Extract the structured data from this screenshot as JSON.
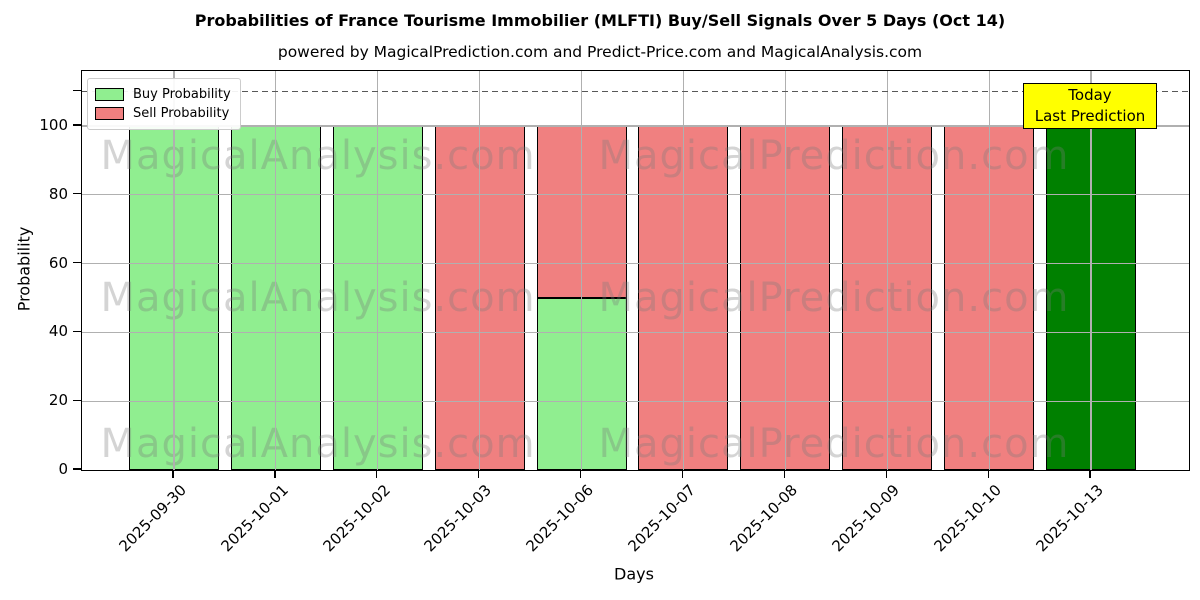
{
  "title": "Probabilities of France Tourisme Immobilier (MLFTI) Buy/Sell Signals Over 5 Days (Oct 14)",
  "subtitle": "powered by MagicalPrediction.com and Predict-Price.com and MagicalAnalysis.com",
  "chart_data": {
    "type": "bar",
    "stacked": true,
    "xlabel": "Days",
    "ylabel": "Probability",
    "ylim": [
      0,
      116
    ],
    "yticks": [
      0,
      20,
      40,
      60,
      80,
      100
    ],
    "unlabeled_ytick": 110,
    "grid": true,
    "grid_color": "#b0b0b0",
    "bar_edge_color": "#000000",
    "categories": [
      "2025-09-30",
      "2025-10-01",
      "2025-10-02",
      "2025-10-03",
      "2025-10-06",
      "2025-10-07",
      "2025-10-08",
      "2025-10-09",
      "2025-10-10",
      "2025-10-13"
    ],
    "series": [
      {
        "name": "Buy Probability",
        "color": "#90ee90",
        "values": [
          100,
          100,
          100,
          0,
          50,
          0,
          0,
          0,
          0,
          0
        ]
      },
      {
        "name": "Sell Probability",
        "color": "#f08080",
        "values": [
          0,
          0,
          0,
          100,
          50,
          100,
          100,
          100,
          100,
          0
        ]
      },
      {
        "name": "Today Prediction (Buy)",
        "color": "#008000",
        "in_legend": false,
        "values": [
          0,
          0,
          0,
          0,
          0,
          0,
          0,
          0,
          0,
          100
        ]
      }
    ],
    "dashed_line": {
      "y": 110,
      "color": "#585858",
      "style": "dashed"
    },
    "legend": {
      "position": "upper-left",
      "entries": [
        {
          "label": "Buy Probability",
          "color": "#90ee90"
        },
        {
          "label": "Sell Probability",
          "color": "#f08080"
        }
      ]
    },
    "annotation": {
      "line1": "Today",
      "line2": "Last Prediction",
      "bg_color": "#ffff00",
      "border_color": "#000000"
    }
  },
  "watermarks": {
    "texts": [
      "MagicalAnalysis.com",
      "MagicalPrediction.com"
    ],
    "color": "#787878"
  }
}
